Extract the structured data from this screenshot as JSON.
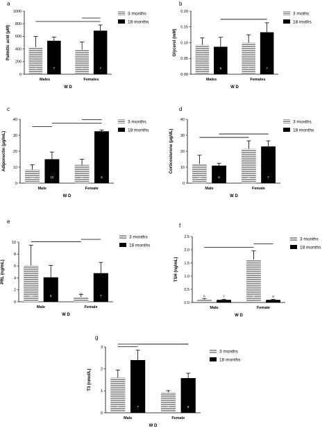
{
  "colors": {
    "hatch_fill": "#9a9a9a",
    "hatch_line": "#ffffff",
    "solid_fill": "#000000",
    "error_bar": "#000000"
  },
  "chart_data": [
    {
      "type": "bar",
      "panel": "a",
      "ylabel": "Palmitic acid (μM)",
      "xlabel": "W D",
      "ylim": [
        0,
        1000
      ],
      "yticks": [
        "0",
        "200",
        "400",
        "600",
        "800",
        "1000"
      ],
      "categories": [
        "Males",
        "Females"
      ],
      "series": [
        {
          "name": "3 months",
          "values": [
            430,
            390
          ],
          "errors": [
            170,
            120
          ],
          "n": [
            "8",
            "8"
          ]
        },
        {
          "name": "18 months",
          "values": [
            530,
            690
          ],
          "errors": [
            60,
            90
          ],
          "n": [
            "7",
            "7"
          ]
        }
      ],
      "brackets": [
        [
          0,
          3
        ],
        [
          2,
          3
        ]
      ],
      "legend": "top-right"
    },
    {
      "type": "bar",
      "panel": "b",
      "ylabel": "Glycerol (mM)",
      "xlabel": "W D",
      "ylim": [
        0,
        0.2
      ],
      "yticks": [
        "0.00",
        "0.05",
        "0.10",
        "0.15",
        "0.20"
      ],
      "categories": [
        "Males",
        "Females"
      ],
      "series": [
        {
          "name": "3 moths",
          "values": [
            0.093,
            0.1
          ],
          "errors": [
            0.022,
            0.025
          ],
          "n": [
            "4",
            "7"
          ]
        },
        {
          "name": "18 moths",
          "values": [
            0.087,
            0.133
          ],
          "errors": [
            0.03,
            0.03
          ],
          "n": [
            "5",
            "7"
          ]
        }
      ],
      "brackets": [
        [
          1,
          3
        ]
      ],
      "legend": "top-right"
    },
    {
      "type": "bar",
      "panel": "c",
      "ylabel": "Adiponectin (μg/mL)",
      "xlabel": "W D",
      "ylim": [
        0,
        40
      ],
      "yticks": [
        "0",
        "10",
        "20",
        "30",
        "40"
      ],
      "categories": [
        "Male",
        "Female"
      ],
      "series": [
        {
          "name": "3 months",
          "values": [
            8.5,
            11.5
          ],
          "errors": [
            3,
            3.5
          ],
          "n": [
            "13",
            "8"
          ]
        },
        {
          "name": "18 months",
          "values": [
            15,
            32.5
          ],
          "errors": [
            4.5,
            0.8
          ],
          "n": [
            "10",
            "8"
          ]
        }
      ],
      "brackets": [
        [
          0,
          1
        ],
        [
          1,
          3
        ],
        [
          2,
          3
        ]
      ],
      "legend": "top-right"
    },
    {
      "type": "bar",
      "panel": "d",
      "ylabel": "Corticosterone (μg/dL)",
      "xlabel": "W D",
      "ylim": [
        0,
        40
      ],
      "yticks": [
        "0",
        "10",
        "20",
        "30",
        "40"
      ],
      "categories": [
        "Male",
        "Female"
      ],
      "series": [
        {
          "name": "3 months",
          "values": [
            12,
            21.5
          ],
          "errors": [
            5.5,
            5
          ],
          "n": [
            "15",
            "11"
          ]
        },
        {
          "name": "18 months",
          "values": [
            11,
            23
          ],
          "errors": [
            1.5,
            3.5
          ],
          "n": [
            "6",
            "7"
          ]
        }
      ],
      "brackets": [
        [
          0,
          2
        ],
        [
          1,
          3
        ]
      ],
      "legend": "top-right"
    },
    {
      "type": "bar",
      "panel": "e",
      "ylabel": "PRL (ng/mL)",
      "xlabel": "W D",
      "ylim": [
        0,
        10
      ],
      "yticks": [
        "0",
        "2",
        "4",
        "6",
        "8",
        "10"
      ],
      "categories": [
        "Male",
        "Female"
      ],
      "series": [
        {
          "name": "3 months",
          "values": [
            6.1,
            0.8
          ],
          "errors": [
            3.4,
            0.4
          ],
          "n": [
            "16",
            "11"
          ]
        },
        {
          "name": "18 months",
          "values": [
            4.1,
            4.8
          ],
          "errors": [
            2,
            1.8
          ],
          "n": [
            "6",
            "7"
          ]
        }
      ],
      "brackets": [
        [
          0,
          2
        ],
        [
          2,
          3
        ]
      ],
      "legend": "top-right"
    },
    {
      "type": "bar",
      "panel": "f",
      "ylabel": "TSH (ng/mL)",
      "xlabel": "W D",
      "ylim": [
        0,
        2.5
      ],
      "yticks": [
        "0.0",
        "0.5",
        "1.0",
        "1.5",
        "2.0",
        "2.5"
      ],
      "categories": [
        "Male",
        "Female"
      ],
      "series": [
        {
          "name": "3 months",
          "values": [
            0.12,
            1.63
          ],
          "errors": [
            0.03,
            0.33
          ],
          "n": [
            "6",
            "8"
          ]
        },
        {
          "name": "18 months",
          "values": [
            0.1,
            0.1
          ],
          "errors": [
            0.02,
            0.02
          ],
          "n": [
            "7",
            "8"
          ]
        }
      ],
      "brackets": [
        [
          0,
          2
        ],
        [
          2,
          3
        ]
      ],
      "legend": "top-right"
    },
    {
      "type": "bar",
      "panel": "g",
      "ylabel": "T3 (nmol/L)",
      "xlabel": "W D",
      "ylim": [
        0,
        3
      ],
      "yticks": [
        "0",
        "1",
        "2",
        "3"
      ],
      "categories": [
        "Male",
        "Female"
      ],
      "series": [
        {
          "name": "3 months",
          "values": [
            1.6,
            0.93
          ],
          "errors": [
            0.35,
            0.08
          ],
          "n": [
            "8",
            "9"
          ]
        },
        {
          "name": "18 months",
          "values": [
            2.4,
            1.58
          ],
          "errors": [
            0.45,
            0.22
          ],
          "n": [
            "7",
            "8"
          ]
        }
      ],
      "brackets": [
        [
          0,
          1
        ],
        [
          0,
          3
        ],
        [
          1,
          2
        ],
        [
          2,
          3
        ]
      ],
      "legend": "top-right"
    }
  ]
}
